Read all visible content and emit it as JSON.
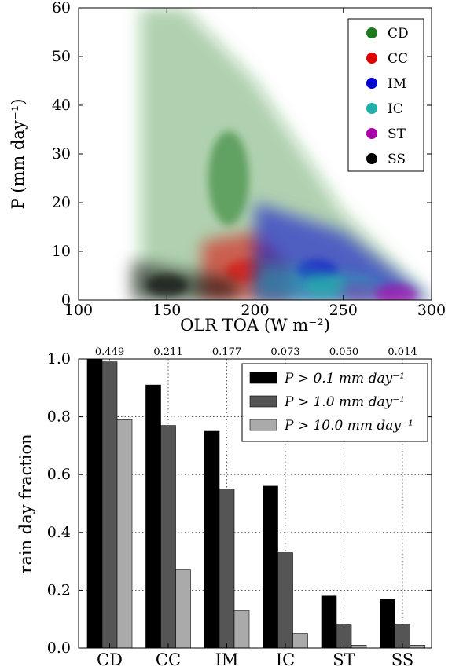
{
  "chart_data": [
    {
      "type": "scatter",
      "xlabel": "OLR TOA (W m⁻²)",
      "ylabel": "P (mm day⁻¹)",
      "xlim": [
        100,
        300
      ],
      "ylim": [
        0,
        60
      ],
      "xticks": [
        "100",
        "150",
        "200",
        "250",
        "300"
      ],
      "yticks": [
        "0",
        "10",
        "20",
        "30",
        "40",
        "50",
        "60"
      ],
      "grid": false,
      "legend_position": "top-right",
      "series": [
        {
          "name": "CD",
          "color": "#1e7a1e",
          "center": [
            185,
            25
          ],
          "envelope_max_p_at_olr": [
            [
              135,
              60
            ],
            [
              160,
              60
            ],
            [
              200,
              45
            ],
            [
              250,
              18
            ],
            [
              300,
              0
            ]
          ]
        },
        {
          "name": "CC",
          "color": "#e00000",
          "center": [
            195,
            6
          ],
          "envelope_max_p_at_olr": [
            [
              170,
              12
            ],
            [
              200,
              14
            ],
            [
              220,
              6
            ]
          ]
        },
        {
          "name": "IM",
          "color": "#0000d0",
          "center": [
            235,
            6
          ],
          "envelope_max_p_at_olr": [
            [
              200,
              20
            ],
            [
              250,
              14
            ],
            [
              300,
              0
            ]
          ]
        },
        {
          "name": "IC",
          "color": "#20b2aa",
          "center": [
            240,
            3
          ],
          "envelope_max_p_at_olr": [
            [
              200,
              8
            ],
            [
              270,
              4
            ]
          ]
        },
        {
          "name": "ST",
          "color": "#aa00aa",
          "center": [
            280,
            1
          ],
          "envelope_max_p_at_olr": [
            [
              250,
              3
            ],
            [
              300,
              0
            ]
          ]
        },
        {
          "name": "SS",
          "color": "#000000",
          "center": [
            150,
            3
          ],
          "envelope_max_p_at_olr": [
            [
              130,
              8
            ],
            [
              190,
              4
            ]
          ]
        }
      ]
    },
    {
      "type": "bar",
      "ylabel": "rain day fraction",
      "xlabel": "",
      "ylim": [
        0,
        1.0
      ],
      "yticks": [
        "0.0",
        "0.2",
        "0.4",
        "0.6",
        "0.8",
        "1.0"
      ],
      "grid": true,
      "legend_position": "top-right",
      "categories": [
        "CD",
        "CC",
        "IM",
        "IC",
        "ST",
        "SS"
      ],
      "top_labels": [
        "0.449",
        "0.211",
        "0.177",
        "0.073",
        "0.050",
        "0.014"
      ],
      "series": [
        {
          "name": "P > 0.1 mm day⁻¹",
          "color": "#000000",
          "values": [
            1.0,
            0.91,
            0.75,
            0.56,
            0.18,
            0.17
          ]
        },
        {
          "name": "P > 1.0 mm day⁻¹",
          "color": "#555555",
          "values": [
            0.99,
            0.77,
            0.55,
            0.33,
            0.08,
            0.08
          ]
        },
        {
          "name": "P > 10.0 mm day⁻¹",
          "color": "#aaaaaa",
          "values": [
            0.79,
            0.27,
            0.13,
            0.05,
            0.01,
            0.01
          ]
        }
      ]
    }
  ]
}
